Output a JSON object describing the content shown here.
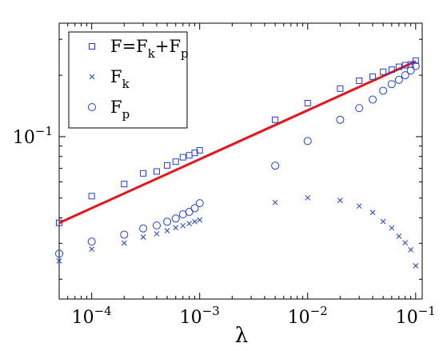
{
  "chart_data": {
    "type": "scatter",
    "xlabel": "λ",
    "ylabel": "",
    "title": "",
    "x_scale": "log",
    "y_scale": "log",
    "xlim": [
      5e-05,
      0.115
    ],
    "ylim": [
      0.016,
      0.36
    ],
    "grid": false,
    "legend_position": "top-left",
    "x_ticks": [
      {
        "value": 0.0001,
        "base": "10",
        "exp": "−4"
      },
      {
        "value": 0.001,
        "base": "10",
        "exp": "−3"
      },
      {
        "value": 0.01,
        "base": "10",
        "exp": "−2"
      },
      {
        "value": 0.1,
        "base": "10",
        "exp": "−1"
      }
    ],
    "y_ticks": [
      {
        "value": 0.1,
        "base": "10",
        "exp": "−1"
      }
    ],
    "legend": [
      {
        "marker": "square",
        "parts": [
          [
            "F=F",
            ""
          ],
          [
            "k",
            "sub"
          ],
          [
            "+F",
            ""
          ],
          [
            "p",
            "sub"
          ]
        ]
      },
      {
        "marker": "cross",
        "parts": [
          [
            "F",
            ""
          ],
          [
            "k",
            "sub"
          ]
        ]
      },
      {
        "marker": "circle",
        "parts": [
          [
            "F",
            ""
          ],
          [
            "p",
            "sub"
          ]
        ]
      }
    ],
    "series": [
      {
        "marker": "square",
        "color": "#1f3fd6",
        "x": [
          5e-05,
          0.0001,
          0.0002,
          0.0003,
          0.0004,
          0.0005,
          0.0006,
          0.0007,
          0.0008,
          0.0009,
          0.001,
          0.005,
          0.01,
          0.02,
          0.03,
          0.04,
          0.05,
          0.06,
          0.07,
          0.08,
          0.09,
          0.1
        ],
        "y": [
          0.0378,
          0.0511,
          0.0586,
          0.0661,
          0.0675,
          0.0723,
          0.0754,
          0.0793,
          0.081,
          0.0833,
          0.0857,
          0.121,
          0.146,
          0.172,
          0.188,
          0.197,
          0.208,
          0.213,
          0.22,
          0.224,
          0.226,
          0.236
        ]
      },
      {
        "marker": "cross",
        "color": "#1f3fd6",
        "x": [
          5e-05,
          0.0001,
          0.0002,
          0.0003,
          0.0004,
          0.0005,
          0.0006,
          0.0007,
          0.0008,
          0.0009,
          0.001,
          0.005,
          0.01,
          0.02,
          0.03,
          0.04,
          0.05,
          0.06,
          0.07,
          0.08,
          0.09,
          0.1
        ],
        "y": [
          0.0246,
          0.0281,
          0.0301,
          0.0322,
          0.0334,
          0.0346,
          0.0358,
          0.0366,
          0.0375,
          0.0383,
          0.0391,
          0.0476,
          0.0502,
          0.0487,
          0.0457,
          0.0425,
          0.0384,
          0.0357,
          0.0325,
          0.0302,
          0.0279,
          0.0233
        ]
      },
      {
        "marker": "circle",
        "color": "#1f3fd6",
        "x": [
          5e-05,
          0.0001,
          0.0002,
          0.0003,
          0.0004,
          0.0005,
          0.0006,
          0.0007,
          0.0008,
          0.0009,
          0.001,
          0.005,
          0.01,
          0.02,
          0.03,
          0.04,
          0.05,
          0.06,
          0.07,
          0.08,
          0.09,
          0.1
        ],
        "y": [
          0.0267,
          0.0306,
          0.0331,
          0.0355,
          0.0367,
          0.0383,
          0.0397,
          0.0416,
          0.0428,
          0.0446,
          0.0472,
          0.0721,
          0.0952,
          0.121,
          0.138,
          0.152,
          0.168,
          0.181,
          0.19,
          0.2,
          0.211,
          0.222
        ]
      }
    ],
    "fit_line": {
      "color": "#e8141b",
      "x": [
        5e-05,
        0.1
      ],
      "y": [
        0.0378,
        0.234
      ]
    }
  }
}
